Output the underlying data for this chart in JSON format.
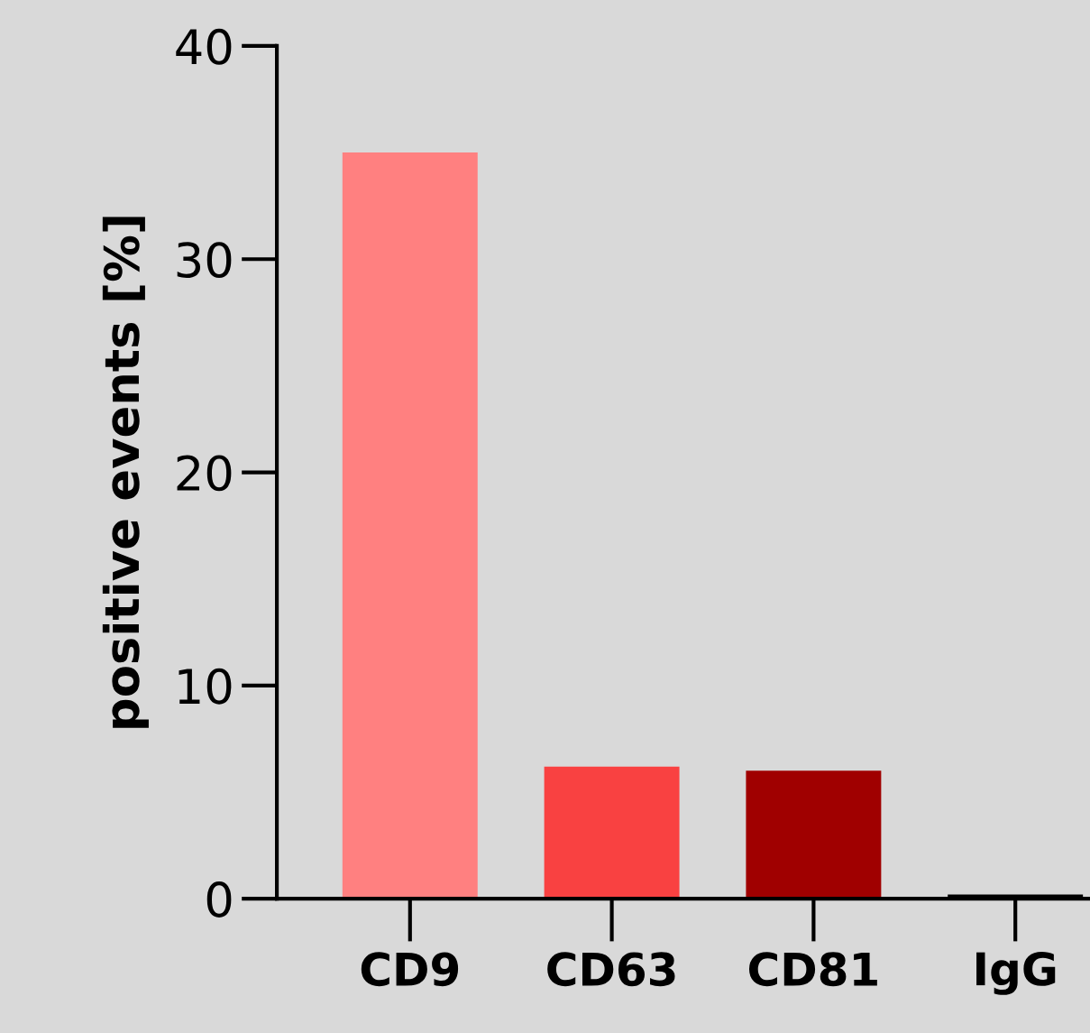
{
  "chart_data": {
    "type": "bar",
    "ylabel": "positive events [%]",
    "categories": [
      "CD9",
      "CD63",
      "CD81",
      "IgG"
    ],
    "values": [
      35,
      6.2,
      6.0,
      0.2
    ],
    "colors": [
      "#ff8080",
      "#f94141",
      "#a00000",
      "#000000"
    ],
    "ylim": [
      0,
      40
    ],
    "yticks": [
      0,
      10,
      20,
      30,
      40
    ],
    "grid": false,
    "legend": false
  }
}
